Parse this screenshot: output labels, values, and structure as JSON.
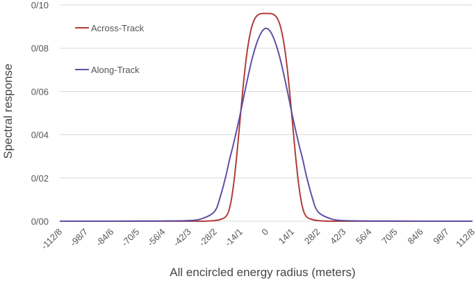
{
  "chart_data": {
    "type": "line",
    "title": "",
    "xlabel": "All encircled energy radius (meters)",
    "ylabel": "Spectral response",
    "xlim": [
      -112.8,
      112.8
    ],
    "ylim": [
      0,
      0.1
    ],
    "grid": true,
    "legend_position": "top-left",
    "x_tick_labels": [
      "-112/8",
      "-98/7",
      "-84/6",
      "-70/5",
      "-56/4",
      "-42/3",
      "-28/2",
      "-14/1",
      "0",
      "14/1",
      "28/2",
      "42/3",
      "56/4",
      "70/5",
      "84/6",
      "98/7",
      "112/8"
    ],
    "x_tick_values": [
      -112.8,
      -98.7,
      -84.6,
      -70.5,
      -56.4,
      -42.3,
      -28.2,
      -14.1,
      0,
      14.1,
      28.2,
      42.3,
      56.4,
      70.5,
      84.6,
      98.7,
      112.8
    ],
    "y_tick_labels": [
      "0/00",
      "0/02",
      "0/04",
      "0/06",
      "0/08",
      "0/10"
    ],
    "y_tick_values": [
      0,
      0.02,
      0.04,
      0.06,
      0.08,
      0.1
    ],
    "x": [
      -112.8,
      -98.7,
      -84.6,
      -70.5,
      -56.4,
      -42.3,
      -35,
      -28.2,
      -25,
      -22,
      -20,
      -18,
      -16,
      -14.1,
      -12,
      -10,
      -8,
      -6,
      -4,
      -2,
      0,
      2,
      4,
      6,
      8,
      10,
      12,
      14.1,
      16,
      18,
      20,
      22,
      25,
      28.2,
      35,
      42.3,
      56.4,
      70.5,
      84.6,
      98.7,
      112.8
    ],
    "series": [
      {
        "name": "Across-Track",
        "color": "#b03c38",
        "values": [
          0,
          0,
          0,
          0,
          0,
          0,
          0,
          0.0003,
          0.0008,
          0.0022,
          0.006,
          0.0156,
          0.0309,
          0.0484,
          0.067,
          0.0807,
          0.0894,
          0.0939,
          0.0956,
          0.096,
          0.096,
          0.096,
          0.0956,
          0.0939,
          0.0894,
          0.0807,
          0.067,
          0.0484,
          0.0309,
          0.0156,
          0.006,
          0.0022,
          0.0008,
          0.0003,
          0,
          0,
          0,
          0,
          0,
          0,
          0
        ]
      },
      {
        "name": "Along-Track",
        "color": "#5f4ea6",
        "values": [
          0,
          0,
          0,
          0.0001,
          0.0001,
          0.0003,
          0.0012,
          0.0045,
          0.0115,
          0.021,
          0.0285,
          0.0352,
          0.0425,
          0.0498,
          0.0585,
          0.0665,
          0.0739,
          0.0801,
          0.0849,
          0.088,
          0.0892,
          0.088,
          0.0849,
          0.0801,
          0.0739,
          0.0665,
          0.0585,
          0.0498,
          0.0425,
          0.0352,
          0.0285,
          0.021,
          0.0115,
          0.0045,
          0.0012,
          0.0003,
          0.0001,
          0.0001,
          0,
          0,
          0
        ]
      }
    ]
  }
}
